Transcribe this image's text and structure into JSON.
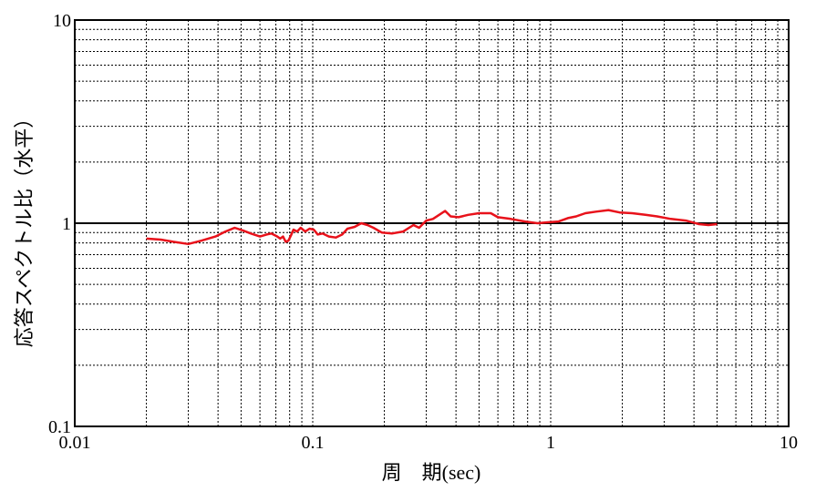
{
  "chart_data": {
    "type": "line",
    "xscale": "log",
    "yscale": "log",
    "xlim": [
      0.01,
      10
    ],
    "ylim": [
      0.1,
      10
    ],
    "grid": true,
    "reference_line": 1,
    "xlabel_prefix": "周　期",
    "xlabel_suffix": "(sec)",
    "ylabel": "応答スペクトル比（水平）",
    "xticks": [
      {
        "value": 0.01,
        "label": "0.01"
      },
      {
        "value": 0.1,
        "label": "0.1"
      },
      {
        "value": 1,
        "label": "1"
      },
      {
        "value": 10,
        "label": "10"
      }
    ],
    "yticks": [
      {
        "value": 0.1,
        "label": "0.1"
      },
      {
        "value": 1,
        "label": "1"
      },
      {
        "value": 10,
        "label": "10"
      }
    ],
    "series": [
      {
        "color": "#e8121b",
        "points": [
          [
            0.02,
            0.84
          ],
          [
            0.023,
            0.83
          ],
          [
            0.026,
            0.81
          ],
          [
            0.03,
            0.79
          ],
          [
            0.034,
            0.82
          ],
          [
            0.039,
            0.86
          ],
          [
            0.043,
            0.91
          ],
          [
            0.047,
            0.95
          ],
          [
            0.051,
            0.92
          ],
          [
            0.055,
            0.89
          ],
          [
            0.06,
            0.86
          ],
          [
            0.064,
            0.88
          ],
          [
            0.067,
            0.89
          ],
          [
            0.071,
            0.86
          ],
          [
            0.073,
            0.84
          ],
          [
            0.075,
            0.86
          ],
          [
            0.077,
            0.81
          ],
          [
            0.079,
            0.82
          ],
          [
            0.081,
            0.87
          ],
          [
            0.083,
            0.93
          ],
          [
            0.086,
            0.91
          ],
          [
            0.089,
            0.95
          ],
          [
            0.093,
            0.91
          ],
          [
            0.097,
            0.94
          ],
          [
            0.101,
            0.93
          ],
          [
            0.105,
            0.88
          ],
          [
            0.11,
            0.89
          ],
          [
            0.117,
            0.86
          ],
          [
            0.125,
            0.85
          ],
          [
            0.133,
            0.88
          ],
          [
            0.14,
            0.94
          ],
          [
            0.15,
            0.96
          ],
          [
            0.16,
            1.0
          ],
          [
            0.17,
            0.98
          ],
          [
            0.18,
            0.95
          ],
          [
            0.195,
            0.9
          ],
          [
            0.215,
            0.89
          ],
          [
            0.24,
            0.91
          ],
          [
            0.265,
            0.98
          ],
          [
            0.28,
            0.95
          ],
          [
            0.3,
            1.03
          ],
          [
            0.32,
            1.05
          ],
          [
            0.34,
            1.1
          ],
          [
            0.36,
            1.15
          ],
          [
            0.38,
            1.08
          ],
          [
            0.41,
            1.07
          ],
          [
            0.45,
            1.1
          ],
          [
            0.5,
            1.12
          ],
          [
            0.56,
            1.12
          ],
          [
            0.6,
            1.07
          ],
          [
            0.68,
            1.05
          ],
          [
            0.78,
            1.02
          ],
          [
            0.88,
            1.0
          ],
          [
            0.97,
            1.01
          ],
          [
            1.08,
            1.02
          ],
          [
            1.18,
            1.06
          ],
          [
            1.28,
            1.08
          ],
          [
            1.4,
            1.12
          ],
          [
            1.55,
            1.14
          ],
          [
            1.75,
            1.16
          ],
          [
            1.95,
            1.13
          ],
          [
            2.2,
            1.12
          ],
          [
            2.5,
            1.1
          ],
          [
            2.8,
            1.08
          ],
          [
            3.2,
            1.05
          ],
          [
            3.7,
            1.03
          ],
          [
            4.2,
            0.99
          ],
          [
            4.6,
            0.98
          ],
          [
            5.0,
            0.99
          ]
        ]
      }
    ]
  }
}
